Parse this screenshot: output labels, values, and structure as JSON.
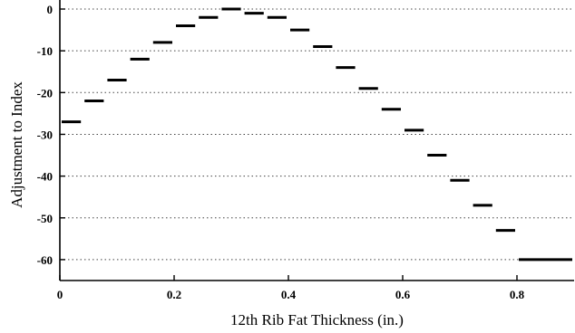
{
  "chart_data": {
    "type": "step",
    "title": "",
    "xlabel": "12th Rib Fat Thickness (in.)",
    "ylabel": "Adjustment to Index",
    "xlim": [
      0,
      0.9
    ],
    "ylim": [
      -65,
      0
    ],
    "xticks": [
      0,
      0.2,
      0.4,
      0.6,
      0.8
    ],
    "xtick_labels": [
      "0",
      "0.2",
      "0.4",
      "0.6",
      "0.8"
    ],
    "yticks": [
      0,
      -10,
      -20,
      -30,
      -40,
      -50,
      -60
    ],
    "ytick_labels": [
      "0",
      "-10",
      "-20",
      "-30",
      "-40",
      "-50",
      "-60"
    ],
    "grid": "horizontal-dotted",
    "segments": [
      {
        "x0": 0.0,
        "x1": 0.04,
        "y": -27
      },
      {
        "x0": 0.04,
        "x1": 0.08,
        "y": -22
      },
      {
        "x0": 0.08,
        "x1": 0.12,
        "y": -17
      },
      {
        "x0": 0.12,
        "x1": 0.16,
        "y": -12
      },
      {
        "x0": 0.16,
        "x1": 0.2,
        "y": -8
      },
      {
        "x0": 0.2,
        "x1": 0.24,
        "y": -4
      },
      {
        "x0": 0.24,
        "x1": 0.28,
        "y": -2
      },
      {
        "x0": 0.28,
        "x1": 0.32,
        "y": 0
      },
      {
        "x0": 0.32,
        "x1": 0.36,
        "y": -1
      },
      {
        "x0": 0.36,
        "x1": 0.4,
        "y": -2
      },
      {
        "x0": 0.4,
        "x1": 0.44,
        "y": -5
      },
      {
        "x0": 0.44,
        "x1": 0.48,
        "y": -9
      },
      {
        "x0": 0.48,
        "x1": 0.52,
        "y": -14
      },
      {
        "x0": 0.52,
        "x1": 0.56,
        "y": -19
      },
      {
        "x0": 0.56,
        "x1": 0.6,
        "y": -24
      },
      {
        "x0": 0.6,
        "x1": 0.64,
        "y": -29
      },
      {
        "x0": 0.64,
        "x1": 0.68,
        "y": -35
      },
      {
        "x0": 0.68,
        "x1": 0.72,
        "y": -41
      },
      {
        "x0": 0.72,
        "x1": 0.76,
        "y": -47
      },
      {
        "x0": 0.76,
        "x1": 0.8,
        "y": -53
      },
      {
        "x0": 0.8,
        "x1": 0.9,
        "y": -60
      }
    ]
  }
}
